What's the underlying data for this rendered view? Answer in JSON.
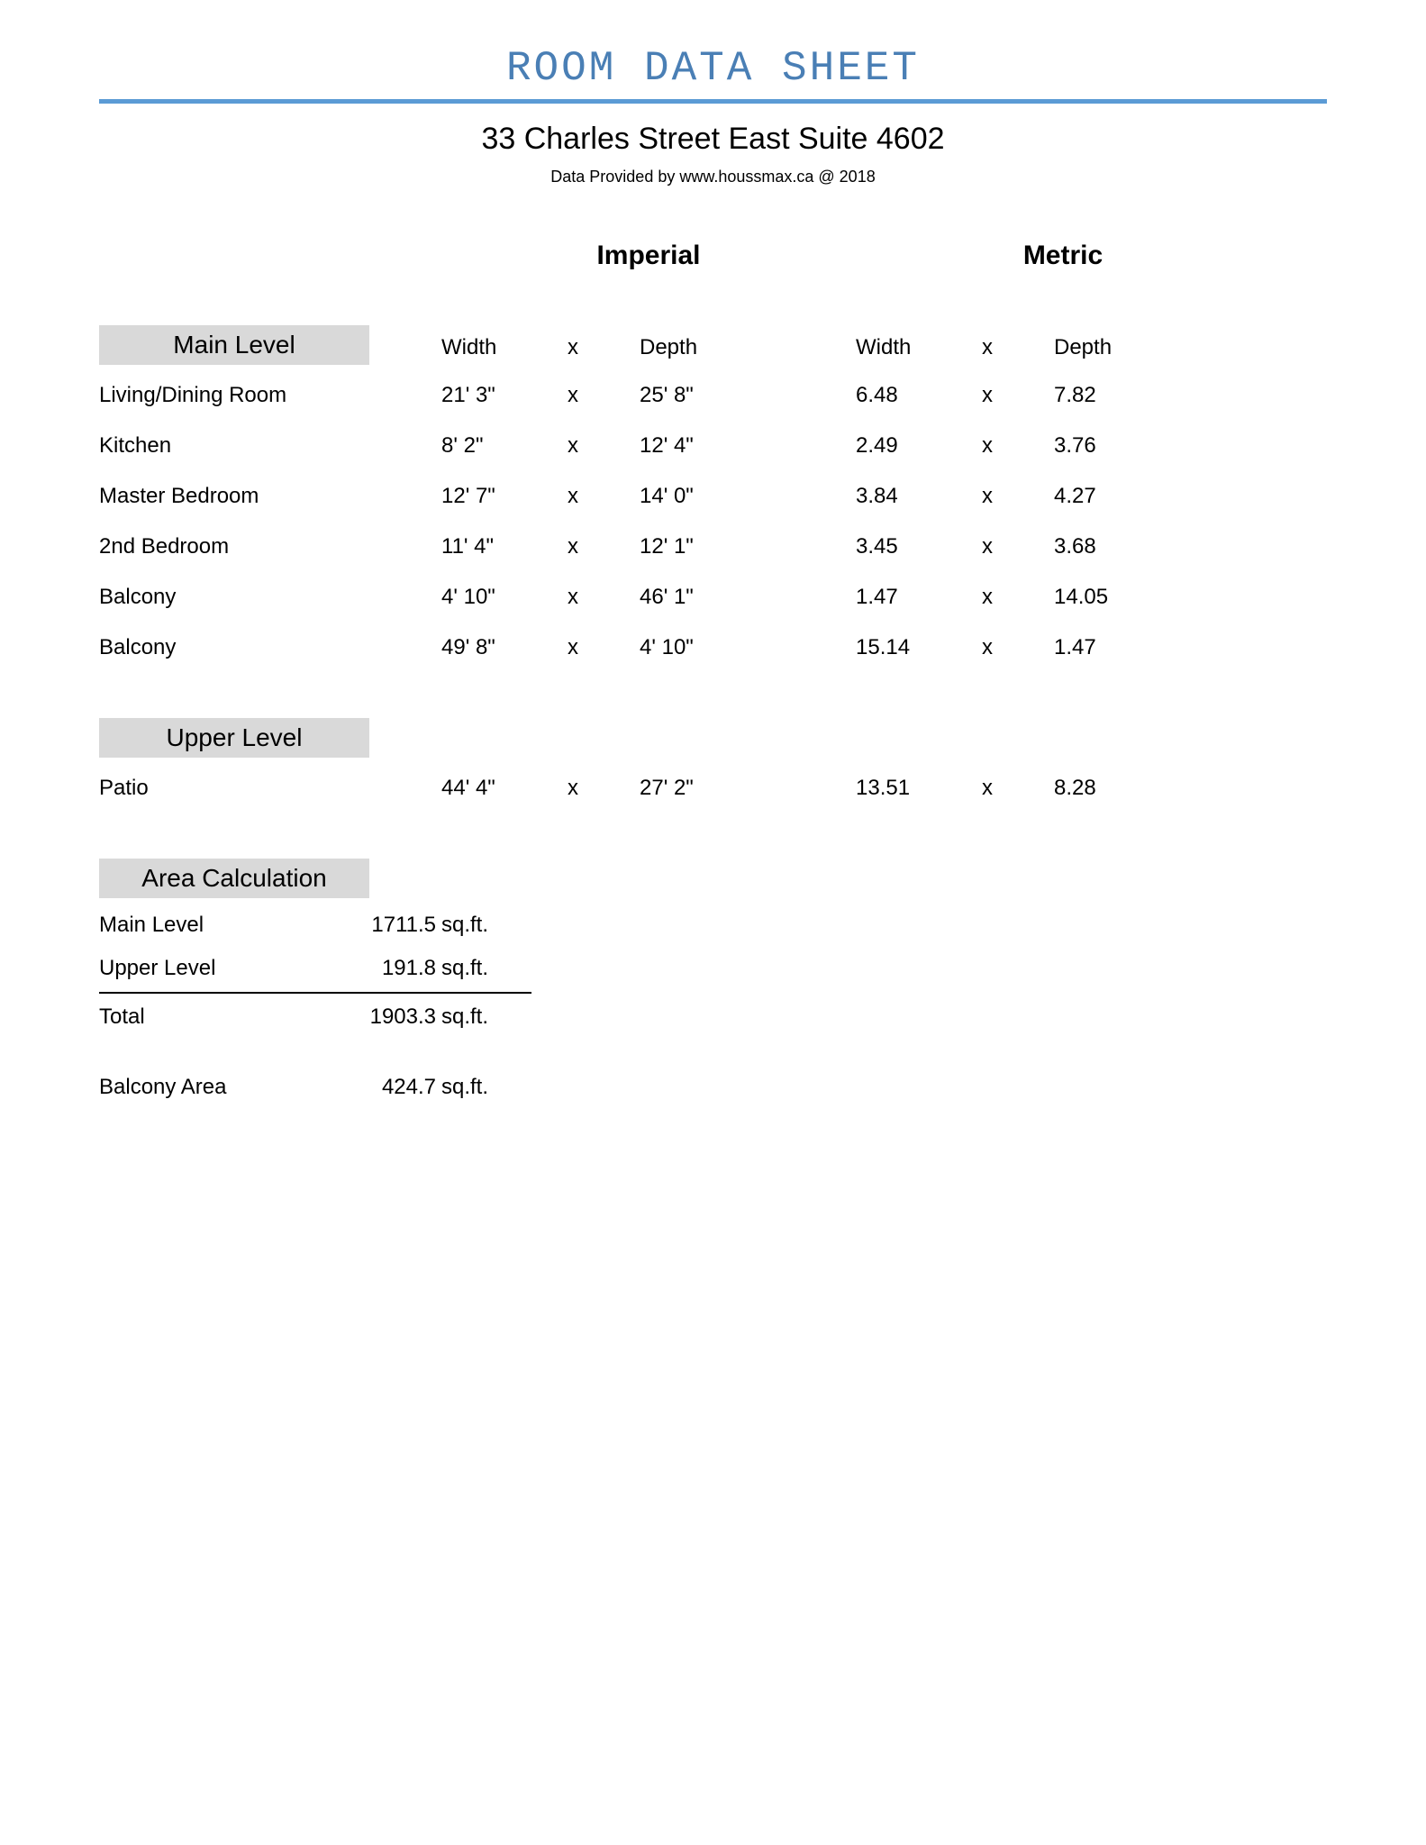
{
  "header": {
    "title": "ROOM DATA SHEET",
    "address": "33 Charles Street East Suite 4602",
    "provider": "Data Provided by www.houssmax.ca @ 2018",
    "title_color": "#4a7fb5",
    "rule_color": "#5b9bd5"
  },
  "units": {
    "imperial_label": "Imperial",
    "metric_label": "Metric",
    "col_width": "Width",
    "col_depth": "Depth",
    "col_sep": "x"
  },
  "levels": [
    {
      "name": "Main Level",
      "rooms": [
        {
          "name": "Living/Dining Room",
          "imp_w": "21' 3\"",
          "imp_d": "25' 8\"",
          "met_w": "6.48",
          "met_d": "7.82"
        },
        {
          "name": "Kitchen",
          "imp_w": "8' 2\"",
          "imp_d": "12' 4\"",
          "met_w": "2.49",
          "met_d": "3.76"
        },
        {
          "name": "Master Bedroom",
          "imp_w": "12' 7\"",
          "imp_d": "14' 0\"",
          "met_w": "3.84",
          "met_d": "4.27"
        },
        {
          "name": "2nd Bedroom",
          "imp_w": "11' 4\"",
          "imp_d": "12' 1\"",
          "met_w": "3.45",
          "met_d": "3.68"
        },
        {
          "name": "Balcony",
          "imp_w": "4' 10\"",
          "imp_d": "46' 1\"",
          "met_w": "1.47",
          "met_d": "14.05"
        },
        {
          "name": "Balcony",
          "imp_w": "49' 8\"",
          "imp_d": "4' 10\"",
          "met_w": "15.14",
          "met_d": "1.47"
        }
      ]
    },
    {
      "name": "Upper Level",
      "rooms": [
        {
          "name": "Patio",
          "imp_w": "44' 4\"",
          "imp_d": "27' 2\"",
          "met_w": "13.51",
          "met_d": "8.28"
        }
      ]
    }
  ],
  "area": {
    "header": "Area Calculation",
    "lines": [
      {
        "label": "Main Level",
        "value": "1711.5",
        "unit": "sq.ft."
      },
      {
        "label": "Upper Level",
        "value": "191.8",
        "unit": "sq.ft."
      }
    ],
    "total": {
      "label": "Total",
      "value": "1903.3",
      "unit": "sq.ft."
    },
    "extra": {
      "label": "Balcony Area",
      "value": "424.7",
      "unit": "sq.ft."
    }
  }
}
